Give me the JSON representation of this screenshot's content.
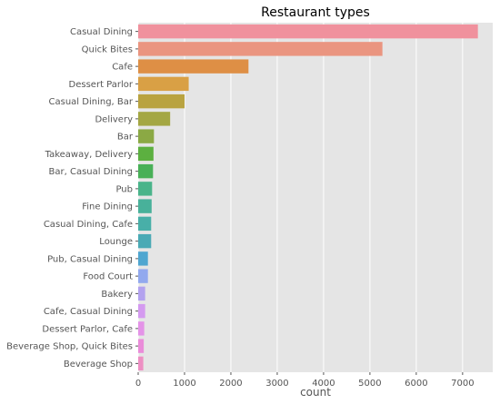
{
  "chart_data": {
    "type": "bar",
    "orientation": "horizontal",
    "title": "Restaurant types",
    "xlabel": "count",
    "ylabel": "",
    "xlim": [
      0,
      7650
    ],
    "xticks": [
      0,
      1000,
      2000,
      3000,
      4000,
      5000,
      6000,
      7000
    ],
    "grid": true,
    "background": "#e5e5e5",
    "grid_color": "#ffffff",
    "categories": [
      "Casual Dining",
      "Quick Bites",
      "Cafe",
      "Dessert Parlor",
      "Casual Dining, Bar",
      "Delivery",
      "Bar",
      "Takeaway, Delivery",
      "Bar, Casual Dining",
      "Pub",
      "Fine Dining",
      "Casual Dining, Cafe",
      "Lounge",
      "Pub, Casual Dining",
      "Food Court",
      "Bakery",
      "Cafe, Casual Dining",
      "Dessert Parlor, Cafe",
      "Beverage Shop, Quick Bites",
      "Beverage Shop"
    ],
    "values": [
      7330,
      5270,
      2380,
      1090,
      1000,
      690,
      340,
      330,
      320,
      300,
      290,
      280,
      280,
      210,
      210,
      150,
      150,
      130,
      120,
      110
    ],
    "colors": [
      "#f0919d",
      "#ea9580",
      "#de8f45",
      "#d9a045",
      "#b9a340",
      "#a4a743",
      "#8ba944",
      "#5cb040",
      "#48b057",
      "#4ab48a",
      "#48b19a",
      "#48afa8",
      "#4aaab5",
      "#4fa6d0",
      "#92a9ee",
      "#b3a2ef",
      "#d49af0",
      "#e493e8",
      "#ea8cd9",
      "#ed8fc3"
    ]
  }
}
